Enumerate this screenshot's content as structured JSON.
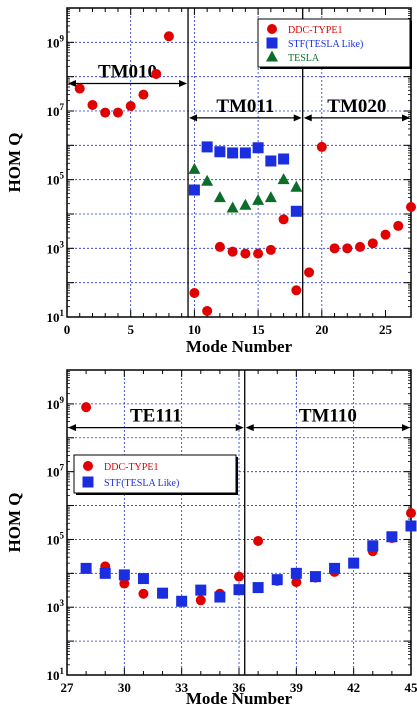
{
  "chart_data": [
    {
      "type": "scatter",
      "xlabel": "Mode Number",
      "ylabel": "HOM Q",
      "xlim": [
        0,
        27
      ],
      "ylim_log10": [
        1,
        10
      ],
      "yscale": "log",
      "x_ticks": [
        0,
        5,
        10,
        15,
        20,
        25
      ],
      "y_ticks": [
        {
          "exp": 1,
          "label": "10",
          "sup": "1"
        },
        {
          "exp": 3,
          "label": "10",
          "sup": "3"
        },
        {
          "exp": 5,
          "label": "10",
          "sup": "5"
        },
        {
          "exp": 7,
          "label": "10",
          "sup": "7"
        },
        {
          "exp": 9,
          "label": "10",
          "sup": "9"
        }
      ],
      "grid": true,
      "legend_position": "top-right",
      "vlines": [
        9.5,
        18.5
      ],
      "regions": [
        {
          "label": "TM010",
          "x_from": 0,
          "x_to": 9.5,
          "y_exp": 7.8
        },
        {
          "label": "TM011",
          "x_from": 9.5,
          "x_to": 18.5,
          "y_exp": 6.8
        },
        {
          "label": "TM020",
          "x_from": 18.5,
          "x_to": 27,
          "y_exp": 6.8
        }
      ],
      "series": [
        {
          "name": "DDC-TYPE1",
          "marker": "circle",
          "color": "#e00000",
          "x": [
            1,
            2,
            3,
            4,
            5,
            6,
            7,
            8,
            10,
            11,
            12,
            13,
            14,
            15,
            16,
            17,
            18,
            19,
            20,
            21,
            22,
            23,
            24,
            25,
            26,
            27
          ],
          "y": [
            45000000.0,
            15000000.0,
            9000000.0,
            9000000.0,
            14000000.0,
            30000000.0,
            120000000.0,
            1500000000.0,
            50,
            15,
            1100,
            800,
            700,
            700,
            900,
            7000,
            60,
            200,
            900000.0,
            1000,
            1000,
            1100,
            1400,
            2500,
            4500,
            16000
          ]
        },
        {
          "name": "STF(TESLA Like)",
          "marker": "square",
          "color": "#1a2ee0",
          "x": [
            10,
            11,
            12,
            13,
            14,
            15,
            16,
            17,
            18
          ],
          "y": [
            50000,
            900000,
            650000,
            600000,
            600000,
            850000,
            350000,
            400000,
            12000
          ]
        },
        {
          "name": "TESLA",
          "marker": "triangle",
          "color": "#0a6e2a",
          "x": [
            10,
            11,
            12,
            13,
            14,
            15,
            16,
            17,
            18
          ],
          "y": [
            200000,
            90000,
            30000,
            15000,
            18000,
            25000,
            30000,
            100000,
            60000
          ]
        }
      ]
    },
    {
      "type": "scatter",
      "xlabel": "Mode Number",
      "ylabel": "HOM Q",
      "xlim": [
        27,
        45
      ],
      "ylim_log10": [
        1,
        10
      ],
      "yscale": "log",
      "x_ticks": [
        27,
        30,
        33,
        36,
        39,
        42,
        45
      ],
      "y_ticks": [
        {
          "exp": 1,
          "label": "10",
          "sup": "1"
        },
        {
          "exp": 3,
          "label": "10",
          "sup": "3"
        },
        {
          "exp": 5,
          "label": "10",
          "sup": "5"
        },
        {
          "exp": 7,
          "label": "10",
          "sup": "7"
        },
        {
          "exp": 9,
          "label": "10",
          "sup": "9"
        }
      ],
      "grid": true,
      "legend_position": "center-left",
      "vlines": [
        36.3
      ],
      "regions": [
        {
          "label": "TE111",
          "x_from": 27,
          "x_to": 36.3,
          "y_exp": 8.3
        },
        {
          "label": "TM110",
          "x_from": 36.3,
          "x_to": 45,
          "y_exp": 8.3
        }
      ],
      "series": [
        {
          "name": "DDC-TYPE1",
          "marker": "circle",
          "color": "#e00000",
          "x": [
            28,
            29,
            30,
            31,
            32,
            33,
            34,
            35,
            36,
            37,
            38,
            39,
            40,
            41,
            42,
            43,
            44,
            45
          ],
          "y": [
            800000000.0,
            16000,
            5000,
            2500,
            2500,
            1500,
            1600,
            2500,
            8000,
            90000,
            6000,
            5500,
            7500,
            11000,
            20000,
            45000,
            110000,
            600000
          ]
        },
        {
          "name": "STF(TESLA Like)",
          "marker": "square",
          "color": "#1a2ee0",
          "x": [
            28,
            29,
            30,
            31,
            32,
            33,
            34,
            35,
            36,
            37,
            38,
            39,
            40,
            41,
            42,
            43,
            44,
            45
          ],
          "y": [
            14000,
            10000,
            9000,
            7000,
            2600,
            1500,
            3200,
            2000,
            3300,
            3800,
            6500,
            10000,
            8000,
            14000,
            20000,
            65000,
            120000,
            250000
          ]
        }
      ]
    }
  ]
}
